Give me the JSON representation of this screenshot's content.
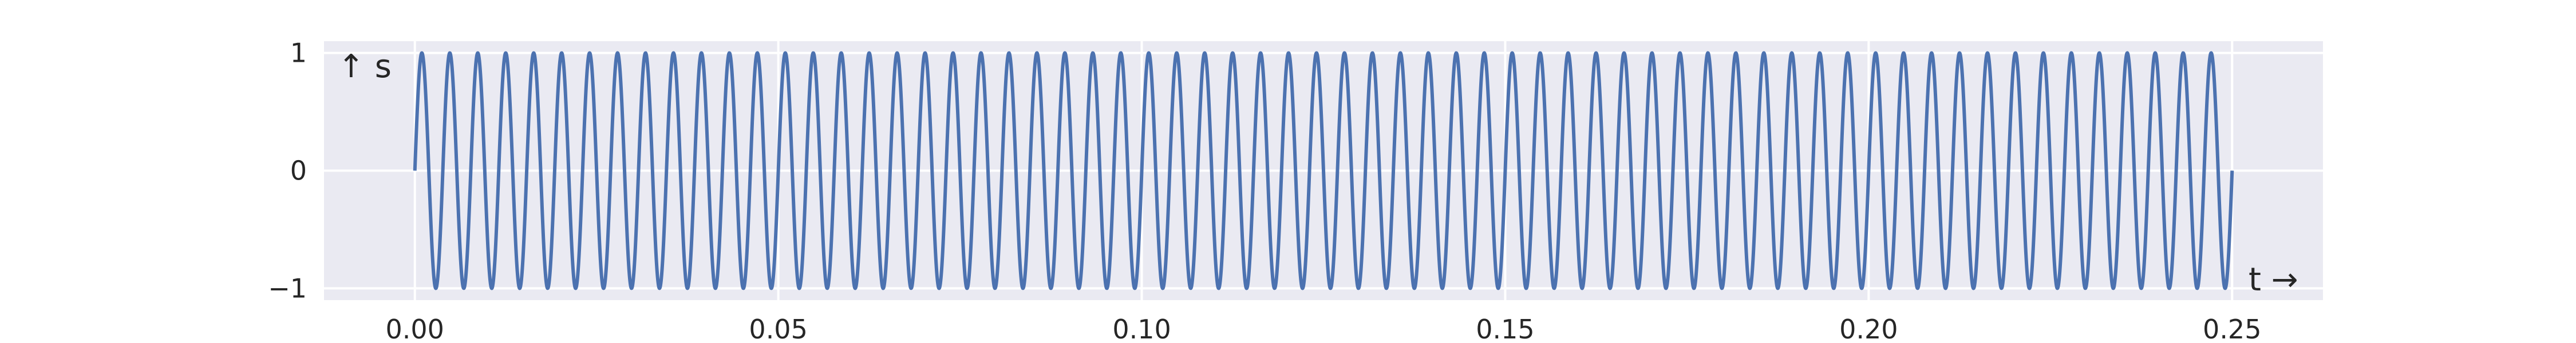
{
  "chart_data": {
    "type": "line",
    "xlabel": "t →",
    "ylabel": "↑ s",
    "xlim": [
      -0.0125,
      0.2625
    ],
    "ylim": [
      -1.1,
      1.1
    ],
    "x_ticks": [
      0.0,
      0.05,
      0.1,
      0.15,
      0.2,
      0.25
    ],
    "x_tick_labels": [
      "0.00",
      "0.05",
      "0.10",
      "0.15",
      "0.20",
      "0.25"
    ],
    "y_ticks": [
      -1,
      0,
      1
    ],
    "y_tick_labels": [
      "−1",
      "0",
      "1"
    ],
    "grid": true,
    "series": [
      {
        "function": "sin(2π·f·t)",
        "frequency_hz": 260,
        "t_start": 0.0,
        "t_end": 0.25,
        "amplitude": 1
      }
    ],
    "colors": {
      "line": "#4c72b0",
      "plot_background": "#eaeaf2",
      "grid": "#ffffff"
    }
  }
}
